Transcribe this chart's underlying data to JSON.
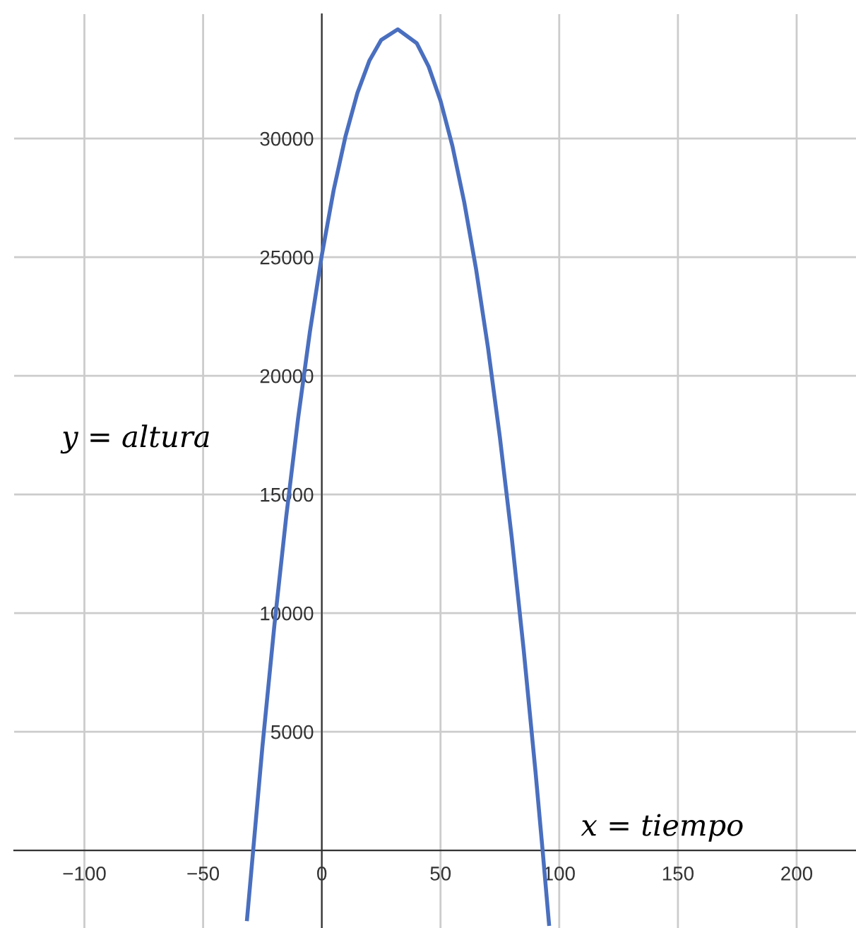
{
  "chart_data": {
    "type": "line",
    "xlabel": "x = tiempo",
    "ylabel": "y = altura",
    "x": [
      -31.5,
      -25,
      -20,
      -15,
      -10,
      -5,
      0,
      5,
      10,
      15,
      20,
      25,
      32,
      40,
      45,
      50,
      55,
      60,
      65,
      70,
      75,
      80,
      85,
      90,
      93,
      95.7
    ],
    "series": [
      {
        "color": "#4a6fbf",
        "values": [
          -2900,
          4390,
          9460,
          14060,
          18200,
          21870,
          25080,
          27830,
          30100,
          31920,
          33270,
          34150,
          34600,
          34010,
          33030,
          31590,
          29690,
          27310,
          24480,
          21180,
          17410,
          13180,
          8480,
          3320,
          0,
          -3100
        ]
      }
    ],
    "xlim": [
      -129.6,
      225
    ],
    "ylim": [
      -3270,
      35240
    ],
    "xticks": [
      {
        "value": -100,
        "label": "−100"
      },
      {
        "value": -50,
        "label": "−50"
      },
      0,
      50,
      100,
      150,
      200
    ],
    "yticks": [
      5000,
      10000,
      15000,
      20000,
      25000,
      30000
    ],
    "grid": true,
    "marker": "none",
    "line_style": "solid",
    "legend": false
  }
}
